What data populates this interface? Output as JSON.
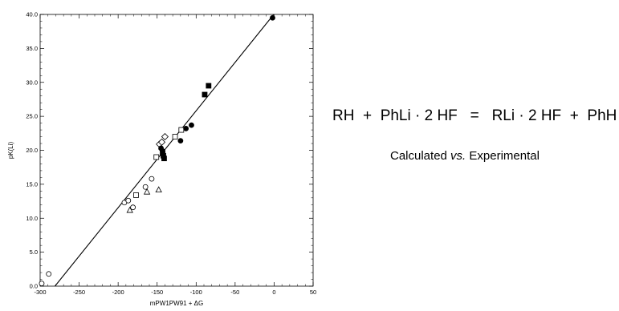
{
  "chart_data": {
    "type": "scatter",
    "xlabel": "mPW1PW91 + ΔG",
    "ylabel": "pK(Li)",
    "xlim": [
      -300,
      50
    ],
    "ylim": [
      0,
      40
    ],
    "xticks": [
      -300,
      -250,
      -200,
      -150,
      -100,
      -50,
      0,
      50
    ],
    "yticks": [
      0,
      5,
      10,
      15,
      20,
      25,
      30,
      35,
      40
    ],
    "xtick_labels": [
      "-300",
      "-250",
      "-200",
      "-150",
      "-100",
      "-50",
      "0",
      "50"
    ],
    "ytick_labels": [
      "0.0",
      "5.0",
      "10.0",
      "15.0",
      "20.0",
      "25.0",
      "30.0",
      "35.0",
      "40.0"
    ],
    "grid": false,
    "fit_line": {
      "x": [
        -281,
        10
      ],
      "y": [
        0,
        41.5
      ]
    },
    "series": [
      {
        "marker": "open-circle",
        "x": [
          -298,
          -289,
          -192,
          -187,
          -181,
          -165,
          -157
        ],
        "y": [
          0.4,
          1.8,
          12.3,
          12.6,
          11.6,
          14.6,
          15.8
        ]
      },
      {
        "marker": "open-triangle",
        "x": [
          -185,
          -163,
          -148
        ],
        "y": [
          11.2,
          13.9,
          14.2
        ]
      },
      {
        "marker": "open-square",
        "x": [
          -177,
          -151,
          -127,
          -119
        ],
        "y": [
          13.4,
          19.0,
          22.0,
          23.0
        ]
      },
      {
        "marker": "open-diamond",
        "x": [
          -147,
          -144,
          -140
        ],
        "y": [
          20.9,
          21.2,
          22.0
        ]
      },
      {
        "marker": "filled-circle",
        "x": [
          -145,
          -143,
          -120,
          -113,
          -106,
          -2
        ],
        "y": [
          20.3,
          19.9,
          21.4,
          23.2,
          23.7,
          39.5
        ]
      },
      {
        "marker": "filled-square",
        "x": [
          -143,
          -142,
          -141,
          -89,
          -84
        ],
        "y": [
          19.6,
          19.2,
          18.8,
          28.2,
          29.5
        ]
      }
    ]
  },
  "equation": {
    "left1": "RH",
    "plus1": "+",
    "left2": "PhLi · 2 HF",
    "equals": "=",
    "right1": "RLi · 2 HF",
    "plus2": "+",
    "right2": "PhH"
  },
  "subtitle": {
    "part1": "Calculated ",
    "part2": "vs.",
    "part3": " Experimental"
  }
}
